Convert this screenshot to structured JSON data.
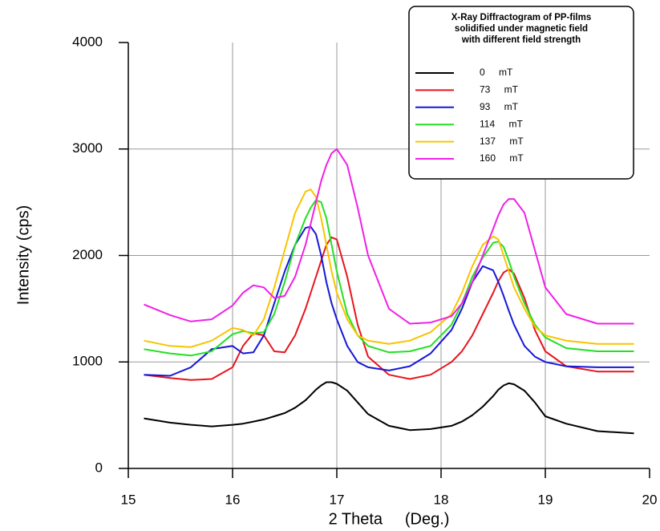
{
  "chart_data": {
    "type": "line",
    "legend_title": [
      "X-Ray Diffractogram of PP-films",
      "solidified under magnetic field",
      "with different field strength"
    ],
    "x_label": "2 Theta     (Deg.)",
    "y_label": "Intensity (cps)",
    "xlim": [
      15,
      20
    ],
    "xticks": [
      15,
      16,
      17,
      18,
      19,
      20
    ],
    "ylim": [
      0,
      4000
    ],
    "yticks": [
      0,
      1000,
      2000,
      3000,
      4000
    ],
    "grid": true,
    "x": [
      15.15,
      15.4,
      15.6,
      15.8,
      16.0,
      16.1,
      16.2,
      16.3,
      16.4,
      16.5,
      16.6,
      16.7,
      16.75,
      16.8,
      16.85,
      16.9,
      16.95,
      17.0,
      17.1,
      17.2,
      17.3,
      17.5,
      17.7,
      17.9,
      18.1,
      18.2,
      18.3,
      18.4,
      18.5,
      18.55,
      18.6,
      18.65,
      18.7,
      18.8,
      18.9,
      19.0,
      19.2,
      19.5,
      19.85
    ],
    "series": [
      {
        "name": "0 mT",
        "color": "#000000",
        "values": [
          470,
          430,
          410,
          395,
          410,
          420,
          440,
          460,
          490,
          520,
          570,
          640,
          690,
          740,
          780,
          810,
          810,
          795,
          730,
          620,
          510,
          400,
          360,
          370,
          400,
          440,
          500,
          580,
          680,
          740,
          780,
          800,
          790,
          730,
          620,
          490,
          420,
          350,
          330
        ]
      },
      {
        "name": "73 mT",
        "color": "#e8141c",
        "values": [
          880,
          850,
          830,
          840,
          950,
          1150,
          1270,
          1250,
          1100,
          1090,
          1250,
          1500,
          1650,
          1800,
          1950,
          2100,
          2170,
          2150,
          1800,
          1350,
          1050,
          880,
          840,
          880,
          1000,
          1100,
          1250,
          1450,
          1650,
          1760,
          1840,
          1870,
          1830,
          1600,
          1300,
          1100,
          960,
          910,
          910
        ]
      },
      {
        "name": "93 mT",
        "color": "#1418d8",
        "values": [
          880,
          870,
          950,
          1120,
          1150,
          1080,
          1090,
          1250,
          1550,
          1850,
          2100,
          2260,
          2270,
          2200,
          2000,
          1750,
          1550,
          1400,
          1150,
          1000,
          950,
          920,
          960,
          1080,
          1300,
          1500,
          1750,
          1900,
          1860,
          1750,
          1620,
          1480,
          1350,
          1150,
          1050,
          1000,
          960,
          950,
          950
        ]
      },
      {
        "name": "114 mT",
        "color": "#22e022",
        "values": [
          1120,
          1080,
          1060,
          1100,
          1260,
          1290,
          1270,
          1280,
          1450,
          1750,
          2100,
          2350,
          2450,
          2520,
          2500,
          2350,
          2100,
          1850,
          1450,
          1250,
          1150,
          1090,
          1100,
          1150,
          1350,
          1550,
          1800,
          1980,
          2120,
          2130,
          2080,
          1950,
          1800,
          1550,
          1350,
          1230,
          1130,
          1100,
          1100
        ]
      },
      {
        "name": "137 mT",
        "color": "#f8c400",
        "values": [
          1200,
          1150,
          1140,
          1200,
          1320,
          1300,
          1250,
          1400,
          1700,
          2050,
          2400,
          2600,
          2620,
          2550,
          2350,
          2100,
          1850,
          1650,
          1400,
          1250,
          1200,
          1170,
          1200,
          1280,
          1450,
          1650,
          1900,
          2100,
          2180,
          2150,
          2000,
          1850,
          1700,
          1500,
          1330,
          1250,
          1200,
          1170,
          1170
        ]
      },
      {
        "name": "160 mT",
        "color": "#f020e8",
        "values": [
          1540,
          1440,
          1380,
          1400,
          1530,
          1650,
          1720,
          1700,
          1600,
          1620,
          1800,
          2100,
          2300,
          2500,
          2700,
          2850,
          2960,
          3000,
          2850,
          2450,
          2000,
          1500,
          1360,
          1370,
          1430,
          1550,
          1750,
          2000,
          2250,
          2380,
          2480,
          2530,
          2530,
          2400,
          2050,
          1700,
          1450,
          1360,
          1360
        ]
      }
    ]
  }
}
